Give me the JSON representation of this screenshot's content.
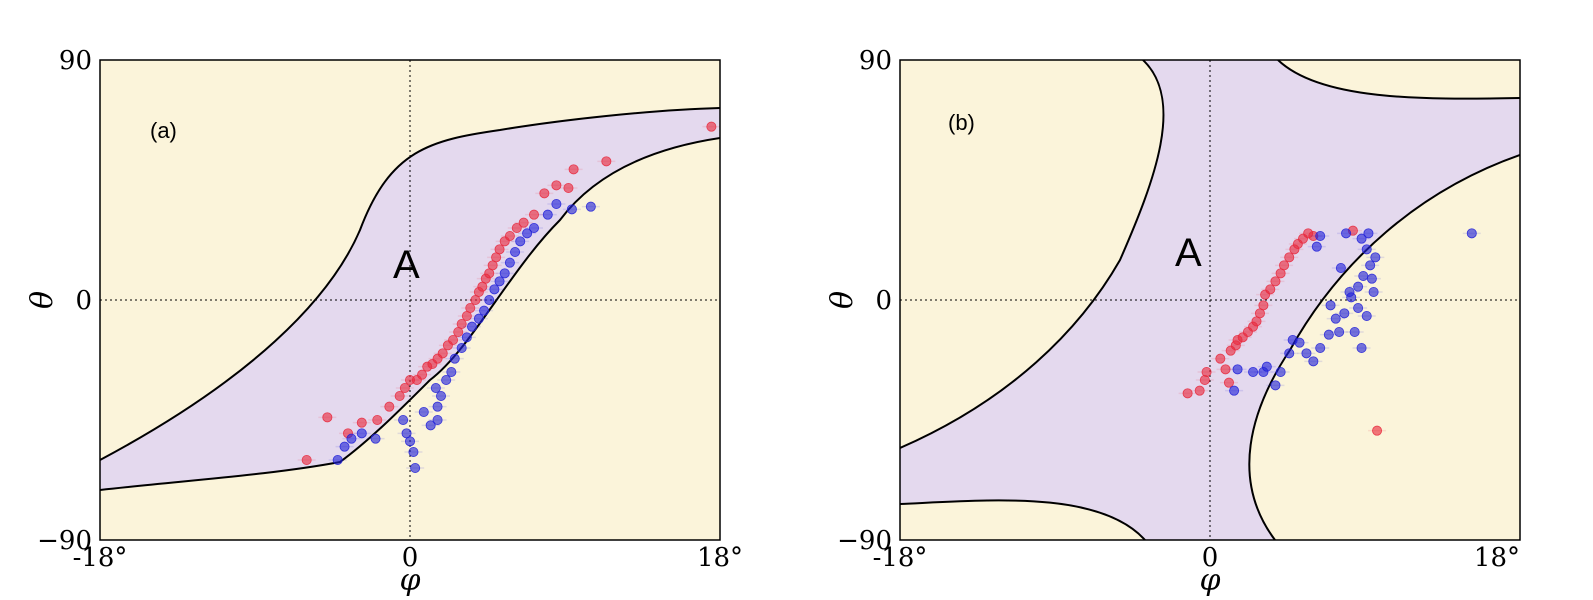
{
  "chart_data": [
    {
      "type": "scatter",
      "panel_label": "(a)",
      "region_label": "A",
      "xlabel": "φ",
      "ylabel": "θ",
      "xlim": [
        -18,
        18
      ],
      "ylim": [
        -90,
        90
      ],
      "x_ticks": [
        "-18°",
        "0",
        "18°"
      ],
      "y_ticks": [
        "90",
        "0",
        "−90"
      ],
      "background_color": "#fbf4da",
      "region_color": "#e4d9ee",
      "series": [
        {
          "name": "red",
          "color": "#e8283c",
          "points": [
            [
              -6.0,
              -60
            ],
            [
              -4.8,
              -44
            ],
            [
              -3.6,
              -50
            ],
            [
              -2.8,
              -46
            ],
            [
              -1.9,
              -45
            ],
            [
              -1.2,
              -40
            ],
            [
              -0.6,
              -36
            ],
            [
              -0.3,
              -33
            ],
            [
              0.0,
              -30
            ],
            [
              0.4,
              -30
            ],
            [
              0.7,
              -28
            ],
            [
              1.0,
              -25
            ],
            [
              1.3,
              -24
            ],
            [
              1.6,
              -22
            ],
            [
              1.9,
              -20
            ],
            [
              2.2,
              -17
            ],
            [
              2.5,
              -15
            ],
            [
              2.8,
              -12
            ],
            [
              3.0,
              -9
            ],
            [
              3.3,
              -6
            ],
            [
              3.5,
              -3
            ],
            [
              3.8,
              0
            ],
            [
              4.0,
              3
            ],
            [
              4.2,
              5
            ],
            [
              4.4,
              8
            ],
            [
              4.6,
              10
            ],
            [
              4.8,
              13
            ],
            [
              5.0,
              16
            ],
            [
              5.2,
              19
            ],
            [
              5.5,
              22
            ],
            [
              5.8,
              24
            ],
            [
              6.2,
              27
            ],
            [
              6.6,
              29
            ],
            [
              7.2,
              32
            ],
            [
              7.8,
              40
            ],
            [
              8.5,
              43
            ],
            [
              9.2,
              42
            ],
            [
              9.5,
              49
            ],
            [
              11.4,
              52
            ],
            [
              17.5,
              65
            ]
          ]
        },
        {
          "name": "blue",
          "color": "#2020d8",
          "points": [
            [
              -4.2,
              -60
            ],
            [
              -3.8,
              -55
            ],
            [
              -3.4,
              -52
            ],
            [
              -2.8,
              -50
            ],
            [
              -2.0,
              -52
            ],
            [
              -0.4,
              -45
            ],
            [
              -0.2,
              -50
            ],
            [
              0.0,
              -53
            ],
            [
              0.3,
              -63
            ],
            [
              0.2,
              -57
            ],
            [
              0.8,
              -42
            ],
            [
              1.2,
              -47
            ],
            [
              1.6,
              -45
            ],
            [
              1.6,
              -40
            ],
            [
              1.8,
              -36
            ],
            [
              1.5,
              -33
            ],
            [
              2.1,
              -30
            ],
            [
              2.4,
              -27
            ],
            [
              2.6,
              -22
            ],
            [
              3.0,
              -18
            ],
            [
              3.3,
              -14
            ],
            [
              3.6,
              -10
            ],
            [
              4.0,
              -7
            ],
            [
              4.3,
              -4
            ],
            [
              4.6,
              0
            ],
            [
              4.9,
              4
            ],
            [
              5.2,
              7
            ],
            [
              5.5,
              10
            ],
            [
              5.8,
              14
            ],
            [
              6.1,
              18
            ],
            [
              6.4,
              22
            ],
            [
              6.8,
              25
            ],
            [
              7.2,
              27
            ],
            [
              8.0,
              32
            ],
            [
              8.5,
              36
            ],
            [
              9.4,
              34
            ],
            [
              10.5,
              35
            ]
          ]
        }
      ]
    },
    {
      "type": "scatter",
      "panel_label": "(b)",
      "region_label": "A",
      "xlabel": "φ",
      "ylabel": "θ",
      "xlim": [
        -18,
        18
      ],
      "ylim": [
        -90,
        90
      ],
      "x_ticks": [
        "-18°",
        "0",
        "18°"
      ],
      "y_ticks": [
        "90",
        "0",
        "−90"
      ],
      "background_color": "#fbf4da",
      "region_color": "#e4d9ee",
      "series": [
        {
          "name": "red",
          "color": "#e8283c",
          "points": [
            [
              -1.3,
              -35
            ],
            [
              -0.6,
              -34
            ],
            [
              -0.3,
              -30
            ],
            [
              -0.2,
              -27
            ],
            [
              0.6,
              -22
            ],
            [
              0.9,
              -26
            ],
            [
              1.1,
              -31
            ],
            [
              1.2,
              -19
            ],
            [
              1.5,
              -17
            ],
            [
              1.6,
              -15
            ],
            [
              1.9,
              -14
            ],
            [
              2.2,
              -12
            ],
            [
              2.5,
              -10
            ],
            [
              2.7,
              -8
            ],
            [
              2.9,
              -5
            ],
            [
              3.1,
              -2
            ],
            [
              3.2,
              2
            ],
            [
              3.5,
              4
            ],
            [
              3.8,
              7
            ],
            [
              4.1,
              10
            ],
            [
              4.3,
              13
            ],
            [
              4.6,
              16
            ],
            [
              4.9,
              19
            ],
            [
              5.1,
              21
            ],
            [
              5.4,
              23
            ],
            [
              5.7,
              25
            ],
            [
              6.0,
              24
            ],
            [
              8.3,
              26
            ],
            [
              9.7,
              -49
            ]
          ]
        },
        {
          "name": "blue",
          "color": "#2020d8",
          "points": [
            [
              1.4,
              -34
            ],
            [
              1.6,
              -26
            ],
            [
              2.5,
              -27
            ],
            [
              3.1,
              -27
            ],
            [
              3.3,
              -25
            ],
            [
              3.8,
              -32
            ],
            [
              4.1,
              -27
            ],
            [
              4.6,
              -20
            ],
            [
              4.8,
              -15
            ],
            [
              5.2,
              -16
            ],
            [
              5.6,
              -20
            ],
            [
              6.0,
              -23
            ],
            [
              6.4,
              -18
            ],
            [
              6.9,
              -13
            ],
            [
              7.3,
              -7
            ],
            [
              7.5,
              -12
            ],
            [
              7.8,
              -5
            ],
            [
              8.2,
              1
            ],
            [
              8.6,
              5
            ],
            [
              8.9,
              9
            ],
            [
              9.3,
              13
            ],
            [
              9.6,
              16
            ],
            [
              9.1,
              19
            ],
            [
              8.8,
              23
            ],
            [
              7.9,
              25
            ],
            [
              6.2,
              20
            ],
            [
              9.1,
              -6
            ],
            [
              8.4,
              -12
            ],
            [
              7.0,
              -2
            ],
            [
              8.1,
              3
            ],
            [
              9.5,
              3
            ],
            [
              7.6,
              12
            ],
            [
              6.4,
              24
            ],
            [
              15.2,
              25
            ],
            [
              9.2,
              25
            ],
            [
              9.4,
              8
            ],
            [
              8.6,
              -3
            ],
            [
              8.8,
              -18
            ]
          ]
        }
      ]
    }
  ]
}
